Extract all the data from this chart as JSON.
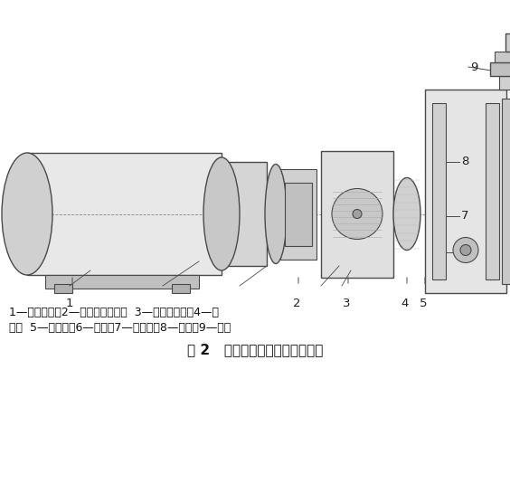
{
  "title": "图 2   闸板关闭机构结构工作原理",
  "caption_line1": "1—闸板电机；2—空心三爪芯轴；  3—尼龙缓冲柱；4—撞",
  "caption_line2": "铁；  5—拨动盘；6—滚轮；7—推拉杆；8—撞盘；9—闸板",
  "bg_color": "#ffffff",
  "line_color": "#4a4a4a",
  "fill_light": "#d8d8d8",
  "fill_mid": "#b0b0b0",
  "fill_dark": "#888888",
  "fill_hatch": "#c0c0c0"
}
